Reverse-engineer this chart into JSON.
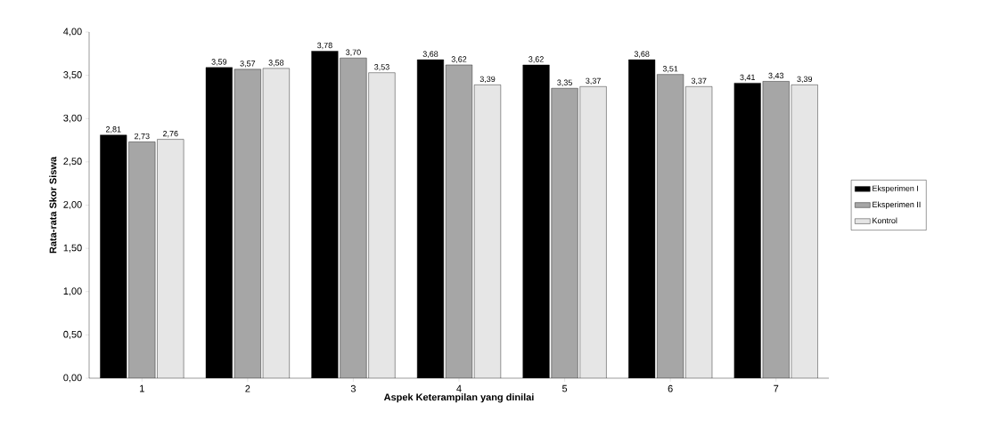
{
  "chart_data": {
    "type": "bar",
    "xlabel": "Aspek Keterampilan yang dinilai",
    "ylabel": "Rata-rata Skor Siswa",
    "categories": [
      "1",
      "2",
      "3",
      "4",
      "5",
      "6",
      "7"
    ],
    "series": [
      {
        "name": "Eksperimen I",
        "color": "#000000",
        "values": [
          2.81,
          3.59,
          3.78,
          3.68,
          3.62,
          3.68,
          3.41
        ],
        "value_labels": [
          "2,81",
          "3,59",
          "3,78",
          "3,68",
          "3,62",
          "3,68",
          "3,41"
        ]
      },
      {
        "name": "Eksperimen II",
        "color": "#a6a6a6",
        "values": [
          2.73,
          3.57,
          3.7,
          3.62,
          3.35,
          3.51,
          3.43
        ],
        "value_labels": [
          "2,73",
          "3,57",
          "3,70",
          "3,62",
          "3,35",
          "3,51",
          "3,43"
        ]
      },
      {
        "name": "Kontrol",
        "color": "#e6e6e6",
        "values": [
          2.76,
          3.58,
          3.53,
          3.39,
          3.37,
          3.37,
          3.39
        ],
        "value_labels": [
          "2,76",
          "3,58",
          "3,53",
          "3,39",
          "3,37",
          "3,37",
          "3,39"
        ]
      }
    ],
    "ylim": [
      0,
      4
    ],
    "yticks": [
      {
        "value": 0,
        "label": "0,00"
      },
      {
        "value": 0.5,
        "label": "0,50"
      },
      {
        "value": 1,
        "label": "1,00"
      },
      {
        "value": 1.5,
        "label": "1,50"
      },
      {
        "value": 2,
        "label": "2,00"
      },
      {
        "value": 2.5,
        "label": "2,50"
      },
      {
        "value": 3,
        "label": "3,00"
      },
      {
        "value": 3.5,
        "label": "3,50"
      },
      {
        "value": 4,
        "label": "4,00"
      }
    ],
    "grid": false,
    "legend": "right"
  }
}
